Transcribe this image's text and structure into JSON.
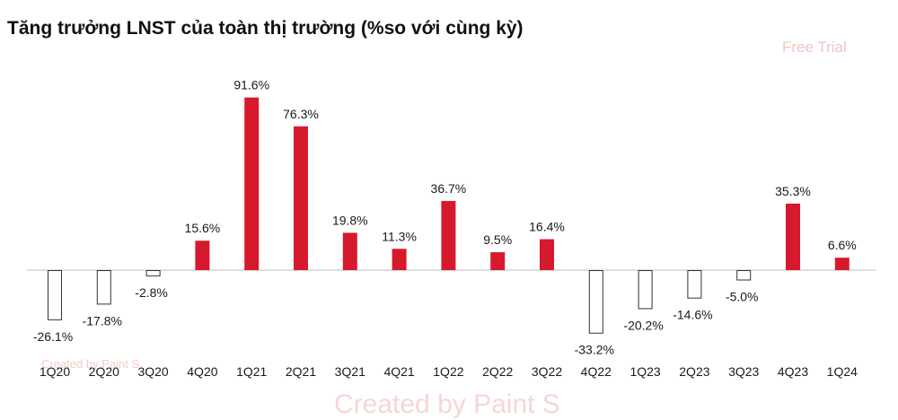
{
  "title": "Tăng trưởng LNST của toàn thị trường (%so với cùng kỳ)",
  "watermarks": {
    "top": "Free Trial",
    "middle": "Created by Paint S",
    "bottom": "Created by Paint S"
  },
  "colors": {
    "positive": "#d7192e",
    "negative_fill": "#ffffff",
    "negative_stroke": "#333333",
    "baseline": "#bbbbbb"
  },
  "chart_data": {
    "type": "bar",
    "title": "Tăng trưởng LNST của toàn thị trường (%so với cùng kỳ)",
    "categories": [
      "1Q20",
      "2Q20",
      "3Q20",
      "4Q20",
      "1Q21",
      "2Q21",
      "3Q21",
      "4Q21",
      "1Q22",
      "2Q22",
      "3Q22",
      "4Q22",
      "1Q23",
      "2Q23",
      "3Q23",
      "4Q23",
      "1Q24"
    ],
    "values": [
      -26.1,
      -17.8,
      -2.8,
      15.6,
      91.6,
      76.3,
      19.8,
      11.3,
      36.7,
      9.5,
      16.4,
      -33.2,
      -20.2,
      -14.6,
      -5.0,
      35.3,
      6.6
    ],
    "labels": [
      "-26.1%",
      "-17.8%",
      "-2.8%",
      "15.6%",
      "91.6%",
      "76.3%",
      "19.8%",
      "11.3%",
      "36.7%",
      "9.5%",
      "16.4%",
      "-33.2%",
      "-20.2%",
      "-14.6%",
      "-5.0%",
      "35.3%",
      "6.6%"
    ],
    "xlabel": "",
    "ylabel": "",
    "grid": false,
    "legend": "none"
  }
}
